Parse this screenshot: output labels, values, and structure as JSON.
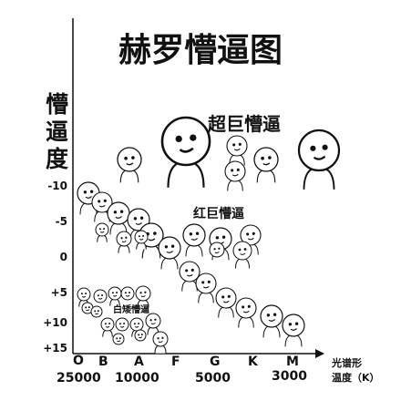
{
  "title": "赫罗懵逼图",
  "y_axis_label": "懵逼度",
  "y_ticks": [
    "-10",
    "-5",
    "0",
    "+5",
    "+10",
    "+15"
  ],
  "x_axis_label": "光谱形",
  "x_axis_label_2": "温度（K）",
  "spectral_classes": [
    "O",
    "B",
    "A",
    "F",
    "G",
    "K",
    "M"
  ],
  "temperature_ticks": [
    "25000",
    "10000",
    "5000",
    "3000"
  ],
  "groups": {
    "supergiants": "超巨懵逼",
    "giants": "红巨懵逼",
    "white_dwarfs": "白矮懵逼"
  },
  "face_icon": "confused-face-icon",
  "colors": {
    "ink": "#111111",
    "background": "#ffffff"
  }
}
